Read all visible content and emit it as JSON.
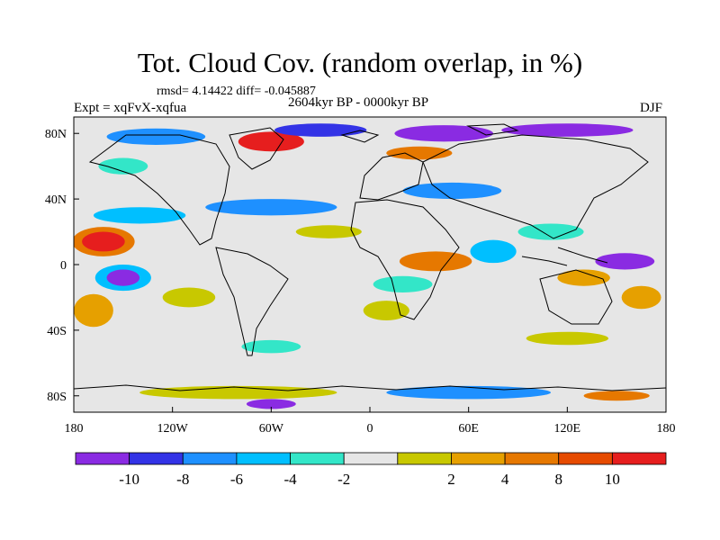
{
  "title": "Tot. Cloud Cov. (random overlap, in %)",
  "stats_text": "rmsd= 4.14422 diff= -0.045887",
  "period_text": "2604kyr BP - 0000kyr BP",
  "experiment_text": "Expt = xqFvX-xqfua",
  "season_text": "DJF",
  "map": {
    "lon_ticks": [
      {
        "value": -180,
        "label": "180"
      },
      {
        "value": -120,
        "label": "120W"
      },
      {
        "value": -60,
        "label": "60W"
      },
      {
        "value": 0,
        "label": "0"
      },
      {
        "value": 60,
        "label": "60E"
      },
      {
        "value": 120,
        "label": "120E"
      },
      {
        "value": 180,
        "label": "180"
      }
    ],
    "lat_ticks": [
      {
        "value": 80,
        "label": "80N"
      },
      {
        "value": 40,
        "label": "40N"
      },
      {
        "value": 0,
        "label": "0"
      },
      {
        "value": -40,
        "label": "40S"
      },
      {
        "value": -80,
        "label": "80S"
      }
    ],
    "lon_range": [
      -180,
      180
    ],
    "lat_range": [
      -90,
      90
    ],
    "background_color": "#e6e6e6",
    "coastline_color": "#000000"
  },
  "colorbar": {
    "colors": [
      "#8a2be2",
      "#3333e6",
      "#1e90ff",
      "#00bfff",
      "#33e6c8",
      "#e6e6e6",
      "#c8c800",
      "#e6a000",
      "#e67800",
      "#e64b00",
      "#e61e1e"
    ],
    "labels": [
      "-10",
      "-8",
      "-6",
      "-4",
      "-2",
      "2",
      "4",
      "8",
      "10"
    ]
  },
  "anomaly_regions": [
    {
      "lon": -162,
      "lat": 14,
      "rx": 19,
      "ry": 9,
      "color": "#e67800"
    },
    {
      "lon": -162,
      "lat": 14,
      "rx": 13,
      "ry": 6,
      "color": "#e61e1e"
    },
    {
      "lon": -150,
      "lat": -8,
      "rx": 17,
      "ry": 8,
      "color": "#00bfff"
    },
    {
      "lon": -150,
      "lat": -8,
      "rx": 10,
      "ry": 5,
      "color": "#8a2be2"
    },
    {
      "lon": -168,
      "lat": -28,
      "rx": 12,
      "ry": 10,
      "color": "#e6a000"
    },
    {
      "lon": -110,
      "lat": -20,
      "rx": 16,
      "ry": 6,
      "color": "#c8c800"
    },
    {
      "lon": -140,
      "lat": 30,
      "rx": 28,
      "ry": 5,
      "color": "#00bfff"
    },
    {
      "lon": -60,
      "lat": 35,
      "rx": 40,
      "ry": 5,
      "color": "#1e90ff"
    },
    {
      "lon": -25,
      "lat": 20,
      "rx": 20,
      "ry": 4,
      "color": "#c8c800"
    },
    {
      "lon": 40,
      "lat": 2,
      "rx": 22,
      "ry": 6,
      "color": "#e67800"
    },
    {
      "lon": 20,
      "lat": -12,
      "rx": 18,
      "ry": 5,
      "color": "#33e6c8"
    },
    {
      "lon": 10,
      "lat": -28,
      "rx": 14,
      "ry": 6,
      "color": "#c8c800"
    },
    {
      "lon": 75,
      "lat": 8,
      "rx": 14,
      "ry": 7,
      "color": "#00bfff"
    },
    {
      "lon": 155,
      "lat": 2,
      "rx": 18,
      "ry": 5,
      "color": "#8a2be2"
    },
    {
      "lon": 130,
      "lat": -8,
      "rx": 16,
      "ry": 5,
      "color": "#e6a000"
    },
    {
      "lon": 165,
      "lat": -20,
      "rx": 12,
      "ry": 7,
      "color": "#e6a000"
    },
    {
      "lon": 50,
      "lat": 45,
      "rx": 30,
      "ry": 5,
      "color": "#1e90ff"
    },
    {
      "lon": 110,
      "lat": 20,
      "rx": 20,
      "ry": 5,
      "color": "#33e6c8"
    },
    {
      "lon": -130,
      "lat": 78,
      "rx": 30,
      "ry": 5,
      "color": "#1e90ff"
    },
    {
      "lon": -60,
      "lat": 75,
      "rx": 20,
      "ry": 6,
      "color": "#e61e1e"
    },
    {
      "lon": -30,
      "lat": 82,
      "rx": 28,
      "ry": 4,
      "color": "#3333e6"
    },
    {
      "lon": 45,
      "lat": 80,
      "rx": 30,
      "ry": 5,
      "color": "#8a2be2"
    },
    {
      "lon": 120,
      "lat": 82,
      "rx": 40,
      "ry": 4,
      "color": "#8a2be2"
    },
    {
      "lon": 30,
      "lat": 68,
      "rx": 20,
      "ry": 4,
      "color": "#e67800"
    },
    {
      "lon": -150,
      "lat": 60,
      "rx": 15,
      "ry": 5,
      "color": "#33e6c8"
    },
    {
      "lon": -80,
      "lat": -78,
      "rx": 60,
      "ry": 4,
      "color": "#c8c800"
    },
    {
      "lon": 60,
      "lat": -78,
      "rx": 50,
      "ry": 4,
      "color": "#1e90ff"
    },
    {
      "lon": -60,
      "lat": -85,
      "rx": 15,
      "ry": 3,
      "color": "#8a2be2"
    },
    {
      "lon": 150,
      "lat": -80,
      "rx": 20,
      "ry": 3,
      "color": "#e67800"
    },
    {
      "lon": 120,
      "lat": -45,
      "rx": 25,
      "ry": 4,
      "color": "#c8c800"
    },
    {
      "lon": -60,
      "lat": -50,
      "rx": 18,
      "ry": 4,
      "color": "#33e6c8"
    }
  ]
}
